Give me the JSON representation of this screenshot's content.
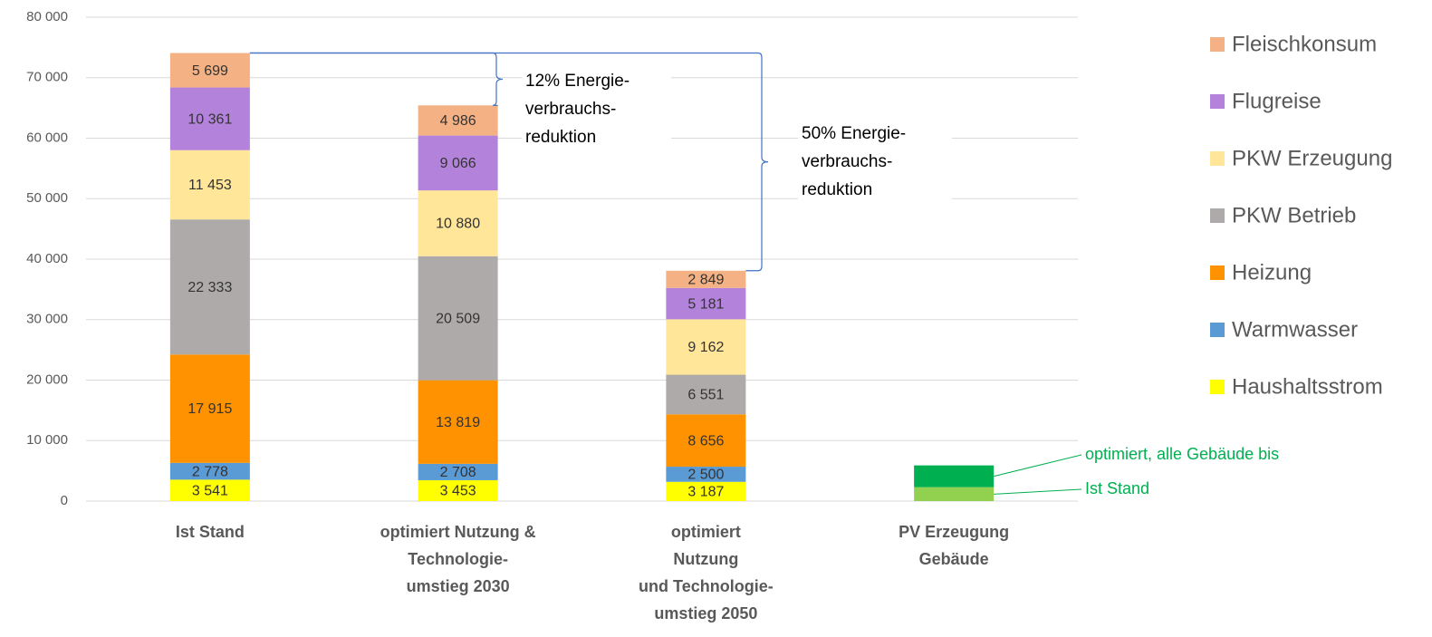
{
  "chart_data": {
    "type": "stacked_bar",
    "categories": [
      [
        "Ist Stand"
      ],
      [
        "optimiert Nutzung &",
        "Technologie-",
        "umstieg 2030"
      ],
      [
        "optimiert",
        "Nutzung",
        "und Technologie-",
        "umstieg 2050"
      ],
      [
        "PV Erzeugung",
        "Gebäude"
      ]
    ],
    "series": [
      {
        "name": "Haushaltsstrom",
        "color": "#ffff00",
        "values": [
          3541,
          3453,
          3187,
          null
        ],
        "value_labels": [
          "3 541",
          "3 453",
          "3 187",
          null
        ]
      },
      {
        "name": "Warmwasser",
        "color": "#5b9bd5",
        "values": [
          2778,
          2708,
          2500,
          null
        ],
        "value_labels": [
          "2 778",
          "2 708",
          "2 500",
          null
        ]
      },
      {
        "name": "Heizung",
        "color": "#ff9200",
        "values": [
          17915,
          13819,
          8656,
          null
        ],
        "value_labels": [
          "17 915",
          "13 819",
          "8 656",
          null
        ]
      },
      {
        "name": "PKW Betrieb",
        "color": "#aeaaaa",
        "values": [
          22333,
          20509,
          6551,
          null
        ],
        "value_labels": [
          "22 333",
          "20 509",
          "6 551",
          null
        ]
      },
      {
        "name": "PKW Erzeugung",
        "color": "#ffe699",
        "values": [
          11453,
          10880,
          9162,
          null
        ],
        "value_labels": [
          "11 453",
          "10 880",
          "9 162",
          null
        ]
      },
      {
        "name": "Flugreise",
        "color": "#b383dc",
        "values": [
          10361,
          9066,
          5181,
          null
        ],
        "value_labels": [
          "10 361",
          "9 066",
          "5 181",
          null
        ]
      },
      {
        "name": "Fleischkonsum",
        "color": "#f4b183",
        "values": [
          5699,
          4986,
          2849,
          null
        ],
        "value_labels": [
          "5 699",
          "4 986",
          "2 849",
          null
        ]
      },
      {
        "name": "Ist Stand",
        "color": "#92d050",
        "values": [
          null,
          null,
          null,
          2300
        ],
        "legend": false
      },
      {
        "name": "optimiert, alle Gebäude  bis",
        "color": "#00b050",
        "values": [
          null,
          null,
          null,
          3600
        ],
        "legend": false
      }
    ],
    "annotations": [
      {
        "lines": [
          "12% Energie-",
          "verbrauchs-",
          "reduktion"
        ]
      },
      {
        "lines": [
          "50% Energie-",
          "verbrauchs-",
          "reduktion"
        ]
      }
    ],
    "ylim": [
      0,
      80000
    ],
    "yticks": [
      0,
      {
        "value": 10000,
        "label": "10 000"
      },
      {
        "value": 20000,
        "label": "20 000"
      },
      {
        "value": 30000,
        "label": "30 000"
      },
      {
        "value": 40000,
        "label": "40 000"
      },
      {
        "value": 50000,
        "label": "50 000"
      },
      {
        "value": 60000,
        "label": "60 000"
      },
      {
        "value": 70000,
        "label": "70 000"
      },
      {
        "value": 80000,
        "label": "80 000"
      }
    ],
    "grid": true
  }
}
